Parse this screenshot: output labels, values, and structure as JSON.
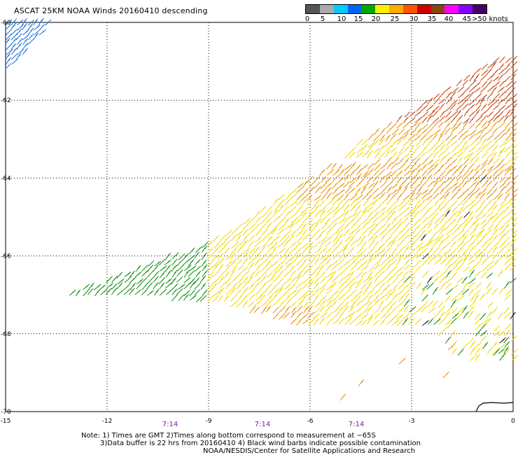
{
  "title": "ASCAT 25KM NOAA Winds 20160410 descending",
  "legend": {
    "labels": [
      "0",
      "5",
      "10",
      "15",
      "20",
      "25",
      "30",
      "35",
      "40",
      "45",
      ">50 knots"
    ],
    "colors": [
      "#555555",
      "#aaaaaa",
      "#00ccff",
      "#0066ff",
      "#00aa00",
      "#ffee00",
      "#ffaa00",
      "#ff5500",
      "#cc0000",
      "#884411",
      "#ff00ff",
      "#8800ff",
      "#440066"
    ]
  },
  "x_ticks": [
    "-15",
    "-12",
    "-9",
    "-6",
    "-3",
    "0"
  ],
  "y_ticks": [
    "-60",
    "-62",
    "-64",
    "-66",
    "-68",
    "-70"
  ],
  "times": [
    "7:14",
    "7:14",
    "7:14"
  ],
  "notes": [
    "Note: 1) Times are GMT 2)Times along bottom correspond to measurement at −65S",
    "3)Data buffer is 22 hrs from 20160410 4) Black wind barbs indicate possible contamination",
    "NOAA/NESDIS/Center for Satellite Applications and Research"
  ],
  "map_data": {
    "lon_range": [
      -15,
      0
    ],
    "lat_range": [
      -70,
      -60
    ],
    "barb_colors": {
      "blue": "#1f6fd6",
      "green": "#0f8a0f",
      "yellow": "#f0d800",
      "orange": "#e89000",
      "red": "#c8420a",
      "black": "#111111"
    }
  }
}
